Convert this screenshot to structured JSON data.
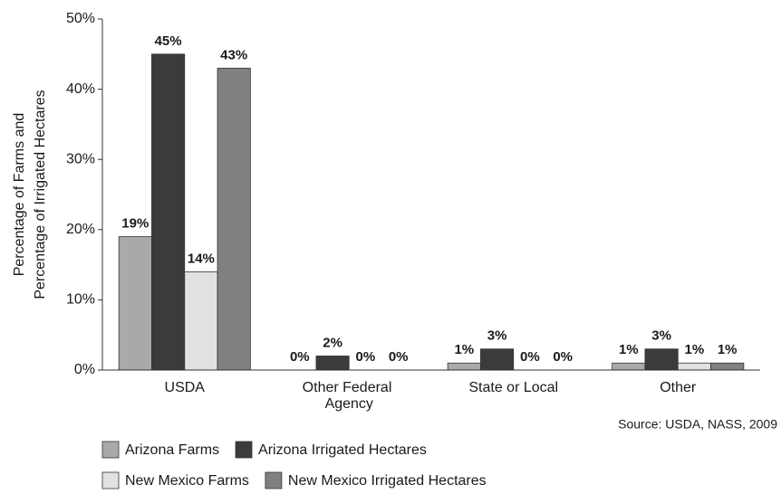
{
  "chart_data": {
    "type": "bar",
    "y_label": [
      "Percentage of Farms and",
      "Percentage of Irrigated Hectares"
    ],
    "source": "Source: USDA, NASS, 2009",
    "categories": [
      "USDA",
      "Other Federal Agency",
      "State or Local",
      "Other"
    ],
    "series": [
      {
        "name": "Arizona Farms",
        "color": "#a9a9ac",
        "values": [
          19,
          0,
          1,
          1
        ],
        "value_labels": [
          "19%",
          "0%",
          "1%",
          "1%"
        ]
      },
      {
        "name": "Arizona Irrigated Hectares",
        "color": "#3b3b3c",
        "values": [
          45,
          2,
          3,
          3
        ],
        "value_labels": [
          "45%",
          "2%",
          "3%",
          "3%"
        ]
      },
      {
        "name": "New Mexico Farms",
        "color": "#e1e1e3",
        "values": [
          14,
          0,
          0,
          1
        ],
        "value_labels": [
          "14%",
          "0%",
          "0%",
          "1%"
        ]
      },
      {
        "name": "New Mexico Irrigated Hectares",
        "color": "#808083",
        "values": [
          43,
          0,
          0,
          1
        ],
        "value_labels": [
          "43%",
          "0%",
          "0%",
          "1%"
        ]
      }
    ],
    "ylim": [
      0,
      50
    ],
    "yticks": [
      {
        "value": 0,
        "label": "0%"
      },
      {
        "value": 10,
        "label": "10%"
      },
      {
        "value": 20,
        "label": "20%"
      },
      {
        "value": 30,
        "label": "30%"
      },
      {
        "value": 40,
        "label": "40%"
      },
      {
        "value": 50,
        "label": "50%"
      }
    ],
    "grid": false
  }
}
